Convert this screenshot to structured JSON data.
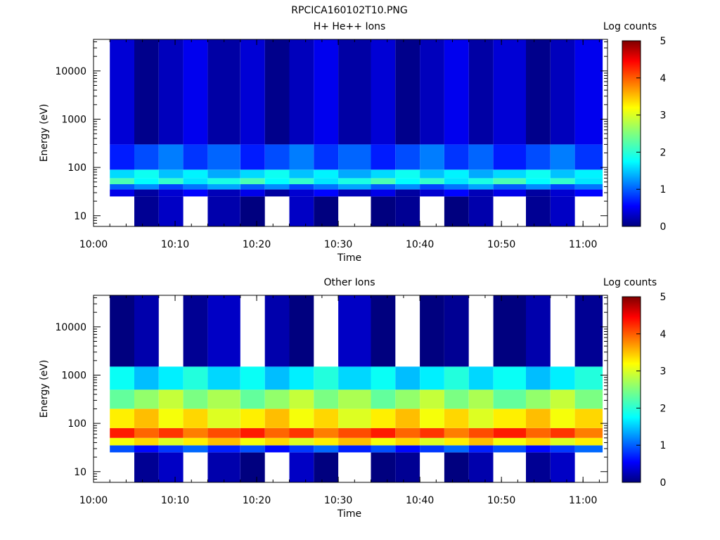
{
  "figure": {
    "title": "RPCICA160102T10.PNG"
  },
  "colors": {
    "background": "#ffffff",
    "axes": "#000000",
    "colormap": [
      "#00007f",
      "#0000ff",
      "#007fff",
      "#00ffff",
      "#7fff7f",
      "#ffff00",
      "#ff7f00",
      "#ff0000",
      "#7f0000"
    ]
  },
  "chart_data": [
    {
      "type": "heatmap",
      "title": "H+ He++ Ions",
      "xlabel": "Time",
      "ylabel": "Energy (eV)",
      "x_ticks": [
        "10:00",
        "10:10",
        "10:20",
        "10:30",
        "10:40",
        "10:50",
        "11:00"
      ],
      "xlim": [
        "10:00",
        "11:03"
      ],
      "y_scale": "log",
      "y_ticks": [
        "10",
        "100",
        "1000",
        "10000"
      ],
      "ylim": [
        6,
        45000
      ],
      "colorbar_label": "Log counts",
      "colorbar_ticks": [
        "0",
        "1",
        "2",
        "3",
        "4",
        "5"
      ],
      "colorbar_range": [
        0,
        5
      ],
      "time_bins": [
        "10:02",
        "10:05",
        "10:08",
        "10:11",
        "10:14",
        "10:18",
        "10:21",
        "10:24",
        "10:27",
        "10:30",
        "10:34",
        "10:37",
        "10:40",
        "10:43",
        "10:46",
        "10:49",
        "10:53",
        "10:56",
        "10:59"
      ],
      "band_levels": [
        {
          "energy_range_eV": [
            6,
            25
          ],
          "log_counts": 0.1
        },
        {
          "energy_range_eV": [
            25,
            35
          ],
          "log_counts": 0.4
        },
        {
          "energy_range_eV": [
            35,
            45
          ],
          "log_counts": 1.2
        },
        {
          "energy_range_eV": [
            45,
            60
          ],
          "log_counts": 2.0
        },
        {
          "energy_range_eV": [
            60,
            90
          ],
          "log_counts": 1.7
        },
        {
          "energy_range_eV": [
            90,
            300
          ],
          "log_counts": 1.0
        },
        {
          "energy_range_eV": [
            300,
            45000
          ],
          "log_counts": 0.3
        }
      ]
    },
    {
      "type": "heatmap",
      "title": "Other Ions",
      "xlabel": "Time",
      "ylabel": "Energy (eV)",
      "x_ticks": [
        "10:00",
        "10:10",
        "10:20",
        "10:30",
        "10:40",
        "10:50",
        "11:00"
      ],
      "xlim": [
        "10:00",
        "11:03"
      ],
      "y_scale": "log",
      "y_ticks": [
        "10",
        "100",
        "1000",
        "10000"
      ],
      "ylim": [
        6,
        45000
      ],
      "colorbar_label": "Log counts",
      "colorbar_ticks": [
        "0",
        "1",
        "2",
        "3",
        "4",
        "5"
      ],
      "colorbar_range": [
        0,
        5
      ],
      "time_bins": [
        "10:02",
        "10:05",
        "10:08",
        "10:11",
        "10:14",
        "10:18",
        "10:21",
        "10:24",
        "10:27",
        "10:30",
        "10:34",
        "10:37",
        "10:40",
        "10:43",
        "10:46",
        "10:49",
        "10:53",
        "10:56",
        "10:59"
      ],
      "band_levels": [
        {
          "energy_range_eV": [
            6,
            25
          ],
          "log_counts": 0.1
        },
        {
          "energy_range_eV": [
            25,
            35
          ],
          "log_counts": 0.9
        },
        {
          "energy_range_eV": [
            35,
            50
          ],
          "log_counts": 3.2
        },
        {
          "energy_range_eV": [
            50,
            80
          ],
          "log_counts": 4.0
        },
        {
          "energy_range_eV": [
            80,
            200
          ],
          "log_counts": 3.2
        },
        {
          "energy_range_eV": [
            200,
            500
          ],
          "log_counts": 2.6
        },
        {
          "energy_range_eV": [
            500,
            1500
          ],
          "log_counts": 1.8
        },
        {
          "energy_range_eV": [
            1500,
            45000
          ],
          "log_counts": 0.1
        }
      ]
    }
  ]
}
